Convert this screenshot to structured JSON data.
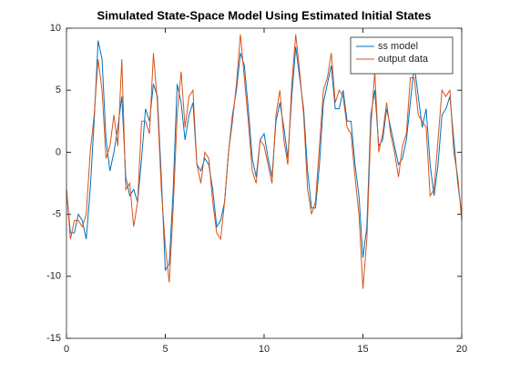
{
  "chart_data": {
    "type": "line",
    "title": "Simulated State-Space Model Using Estimated Initial States",
    "x": [
      0,
      0.2,
      0.4,
      0.6,
      0.8,
      1,
      1.2,
      1.4,
      1.6,
      1.8,
      2,
      2.2,
      2.4,
      2.6,
      2.8,
      3,
      3.2,
      3.4,
      3.6,
      3.8,
      4,
      4.2,
      4.4,
      4.6,
      4.8,
      5,
      5.2,
      5.4,
      5.6,
      5.8,
      6,
      6.2,
      6.4,
      6.6,
      6.8,
      7,
      7.2,
      7.4,
      7.6,
      7.8,
      8,
      8.2,
      8.4,
      8.6,
      8.8,
      9,
      9.2,
      9.4,
      9.6,
      9.8,
      10,
      10.2,
      10.4,
      10.6,
      10.8,
      11,
      11.2,
      11.4,
      11.6,
      11.8,
      12,
      12.2,
      12.4,
      12.6,
      12.8,
      13,
      13.2,
      13.4,
      13.6,
      13.8,
      14,
      14.2,
      14.4,
      14.6,
      14.8,
      15,
      15.2,
      15.4,
      15.6,
      15.8,
      16,
      16.2,
      16.4,
      16.6,
      16.8,
      17,
      17.2,
      17.4,
      17.6,
      17.8,
      18,
      18.2,
      18.4,
      18.6,
      18.8,
      19,
      19.2,
      19.4,
      19.6,
      19.8,
      20
    ],
    "series": [
      {
        "name": "ss model",
        "color": "#0072BD",
        "values": [
          -3,
          -6.5,
          -6.5,
          -5,
          -5.5,
          -7,
          -3,
          2.5,
          9,
          7.5,
          1,
          -1.5,
          0,
          2,
          4.5,
          -2,
          -3.5,
          -3,
          -4,
          -0.5,
          3.5,
          2.5,
          5.5,
          4.5,
          -2,
          -9.5,
          -9,
          -3,
          5.5,
          4,
          1,
          3,
          4,
          -1,
          -1.5,
          -0.5,
          -1,
          -3,
          -6,
          -5.5,
          -4,
          0,
          3,
          5,
          8,
          7,
          3.5,
          -0.5,
          -2,
          1,
          1.5,
          -0.5,
          -2,
          2.5,
          4,
          2,
          -0.5,
          4.5,
          8.5,
          6,
          3.5,
          -1.5,
          -4.5,
          -4.5,
          -1,
          4,
          5.5,
          7,
          3.5,
          3.5,
          5,
          2.5,
          2.5,
          -1,
          -3.5,
          -8.5,
          -6,
          3,
          5,
          0.5,
          1,
          3.5,
          2,
          0.5,
          -1,
          -0.5,
          1,
          4,
          7,
          4.5,
          2,
          3.5,
          -1,
          -3.5,
          -1,
          3,
          3.5,
          4.5,
          1,
          -2.5,
          -5
        ]
      },
      {
        "name": "output data",
        "color": "#D95319",
        "values": [
          -3,
          -7,
          -5.5,
          -5.5,
          -6,
          -5,
          0,
          3,
          7.5,
          5,
          -0.5,
          0.5,
          3,
          0.5,
          7.5,
          -3,
          -2.5,
          -6,
          -4,
          2.5,
          2.5,
          1.5,
          8,
          4,
          -3,
          -7.5,
          -10.5,
          -4.5,
          3,
          6.5,
          2,
          4.5,
          5,
          -1,
          -2.5,
          0,
          -0.5,
          -4,
          -6.5,
          -7,
          -4,
          0,
          2.5,
          5.5,
          9.5,
          6,
          2.5,
          -1.5,
          -2.5,
          1,
          0.5,
          -1,
          -2.5,
          3,
          5,
          1,
          -1,
          5.5,
          9.5,
          6.5,
          3,
          -3,
          -5,
          -4,
          0.5,
          5,
          6,
          8,
          4,
          5,
          4.5,
          2,
          1.5,
          -2,
          -5,
          -11,
          -7,
          2,
          6.5,
          0,
          1.5,
          4,
          1.5,
          0,
          -2,
          0.5,
          1.5,
          6,
          6,
          3,
          2.5,
          2,
          -3.5,
          -3,
          1,
          5,
          4.5,
          5,
          0,
          -2,
          -5.5
        ]
      }
    ],
    "xlim": [
      0,
      20
    ],
    "xticks": [
      0,
      5,
      10,
      15,
      20
    ],
    "ylim": [
      -15,
      10
    ],
    "yticks": [
      -15,
      -10,
      -5,
      0,
      5,
      10
    ],
    "legend": "northeast"
  }
}
